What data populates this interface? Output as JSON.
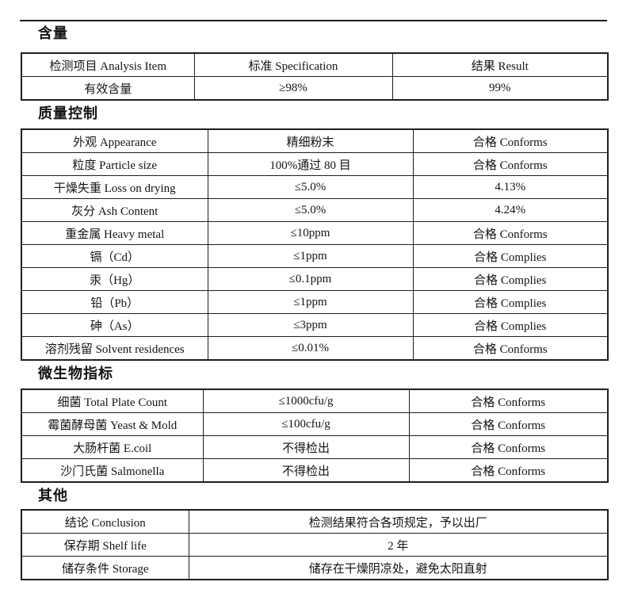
{
  "colors": {
    "ink": "#141414",
    "border": "#1e1e1e",
    "background": "#ffffff"
  },
  "sections": [
    {
      "heading": "含量",
      "header": [
        "检测项目  Analysis Item",
        "标准   Specification",
        "结果  Result"
      ],
      "rows": [
        [
          "有效含量",
          "≥98%",
          "99%"
        ]
      ]
    },
    {
      "heading": "质量控制",
      "rows": [
        [
          "外观  Appearance",
          "精细粉末",
          "合格 Conforms"
        ],
        [
          "粒度  Particle size",
          "100%通过 80 目",
          "合格 Conforms"
        ],
        [
          "干燥失重 Loss on drying",
          "≤5.0%",
          "4.13%"
        ],
        [
          "灰分 Ash Content",
          "≤5.0%",
          "4.24%"
        ],
        [
          "重金属  Heavy metal",
          "≤10ppm",
          "合格 Conforms"
        ],
        [
          "镉（Cd）",
          "≤1ppm",
          "合格 Complies"
        ],
        [
          "汞（Hg）",
          "≤0.1ppm",
          "合格 Complies"
        ],
        [
          "铅（Pb）",
          "≤1ppm",
          "合格 Complies"
        ],
        [
          "砷（As）",
          "≤3ppm",
          "合格 Complies"
        ],
        [
          "溶剂残留 Solvent residences",
          "≤0.01%",
          "合格 Conforms"
        ]
      ]
    },
    {
      "heading": "微生物指标",
      "rows": [
        [
          "细菌  Total Plate Count",
          "≤1000cfu/g",
          "合格 Conforms"
        ],
        [
          "霉菌酵母菌  Yeast & Mold",
          "≤100cfu/g",
          "合格 Conforms"
        ],
        [
          "大肠杆菌   E.coil",
          "不得检出",
          "合格 Conforms"
        ],
        [
          "沙门氏菌   Salmonella",
          "不得检出",
          "合格 Conforms"
        ]
      ]
    },
    {
      "heading": "其他",
      "rows": [
        [
          "结论  Conclusion",
          "检测结果符合各项规定，予以出厂"
        ],
        [
          "保存期  Shelf life",
          "2 年"
        ],
        [
          "储存条件 Storage",
          "储存在干燥阴凉处，避免太阳直射"
        ]
      ]
    }
  ]
}
